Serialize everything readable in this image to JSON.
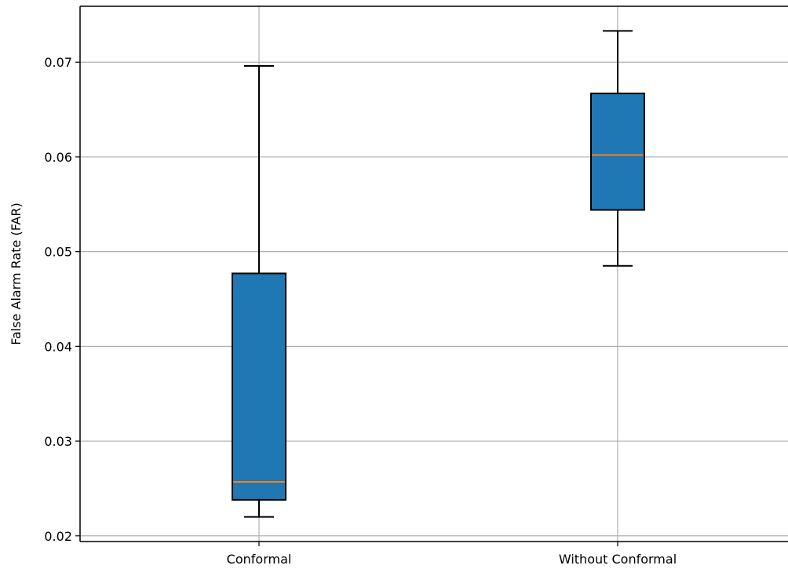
{
  "chart_data": {
    "type": "box",
    "title": "",
    "xlabel": "",
    "ylabel": "False Alarm Rate (FAR)",
    "categories": [
      "Conformal",
      "Without Conformal"
    ],
    "boxes": [
      {
        "category": "Conformal",
        "whisker_low": 0.022,
        "q1": 0.0238,
        "median": 0.0257,
        "q3": 0.0477,
        "whisker_high": 0.0696
      },
      {
        "category": "Without Conformal",
        "whisker_low": 0.0485,
        "q1": 0.0544,
        "median": 0.0602,
        "q3": 0.0667,
        "whisker_high": 0.0733
      }
    ],
    "yticks": [
      0.02,
      0.03,
      0.04,
      0.05,
      0.06,
      0.07
    ],
    "ytick_labels": [
      "0.02",
      "0.03",
      "0.04",
      "0.05",
      "0.06",
      "0.07"
    ],
    "ylim": [
      0.0194,
      0.0759
    ],
    "grid": true,
    "colors": {
      "box_fill": "#1f77b4",
      "median": "#ff7f0e",
      "grid": "#b0b0b0",
      "edge": "#000000"
    }
  }
}
